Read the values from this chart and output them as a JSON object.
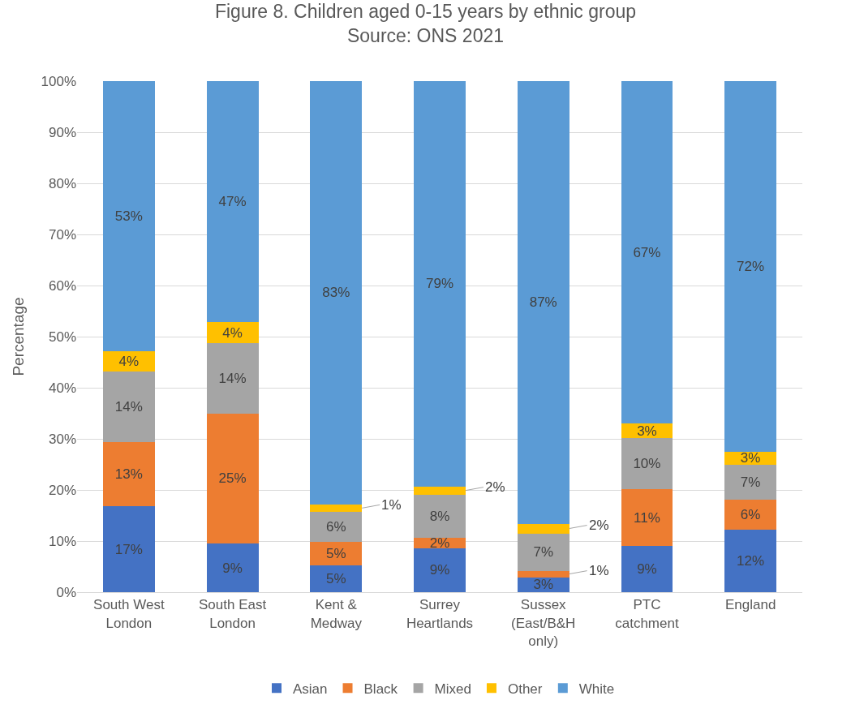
{
  "chart_data": {
    "type": "bar",
    "title": "Figure 8. Children aged 0-15 years by ethnic group",
    "subtitle": "Source: ONS 2021",
    "ylabel": "Percentage",
    "categories": [
      "South West London",
      "South East London",
      "Kent & Medway",
      "Surrey Heartlands",
      "Sussex (East/B&H only)",
      "PTC catchment",
      "England"
    ],
    "stacked": true,
    "series": [
      {
        "name": "Asian",
        "color": "#4472c4",
        "values": [
          16.8,
          9.5,
          5.3,
          8.6,
          2.9,
          9.1,
          12.3
        ],
        "value_labels": [
          "17%",
          "9%",
          "5%",
          "9%",
          "3%",
          "9%",
          "12%"
        ]
      },
      {
        "name": "Black",
        "color": "#ed7d31",
        "values": [
          12.6,
          25.5,
          4.6,
          2.1,
          1.3,
          11.0,
          5.8
        ],
        "value_labels": [
          "13%",
          "25%",
          "5%",
          "2%",
          "1%",
          "11%",
          "6%"
        ]
      },
      {
        "name": "Mixed",
        "color": "#a5a5a5",
        "values": [
          13.8,
          13.7,
          5.8,
          8.4,
          7.3,
          10.0,
          6.8
        ],
        "value_labels": [
          "14%",
          "14%",
          "6%",
          "8%",
          "7%",
          "10%",
          "7%"
        ]
      },
      {
        "name": "Other",
        "color": "#ffc000",
        "values": [
          4.0,
          4.1,
          1.5,
          1.6,
          1.9,
          2.9,
          2.6
        ],
        "value_labels": [
          "4%",
          "4%",
          "1%",
          "2%",
          "2%",
          "3%",
          "3%"
        ]
      },
      {
        "name": "White",
        "color": "#5b9bd5",
        "values": [
          52.8,
          47.2,
          82.8,
          79.3,
          86.6,
          67.0,
          72.5
        ],
        "value_labels": [
          "53%",
          "47%",
          "83%",
          "79%",
          "87%",
          "67%",
          "72%"
        ]
      }
    ],
    "ylim": [
      0,
      100
    ],
    "yticks": [
      {
        "value": 0,
        "label": "0%"
      },
      {
        "value": 10,
        "label": "10%"
      },
      {
        "value": 20,
        "label": "20%"
      },
      {
        "value": 30,
        "label": "30%"
      },
      {
        "value": 40,
        "label": "40%"
      },
      {
        "value": 50,
        "label": "50%"
      },
      {
        "value": 60,
        "label": "60%"
      },
      {
        "value": 70,
        "label": "70%"
      },
      {
        "value": 80,
        "label": "80%"
      },
      {
        "value": 90,
        "label": "90%"
      },
      {
        "value": 100,
        "label": "100%"
      }
    ],
    "grid": "y",
    "legend": "bottom"
  }
}
